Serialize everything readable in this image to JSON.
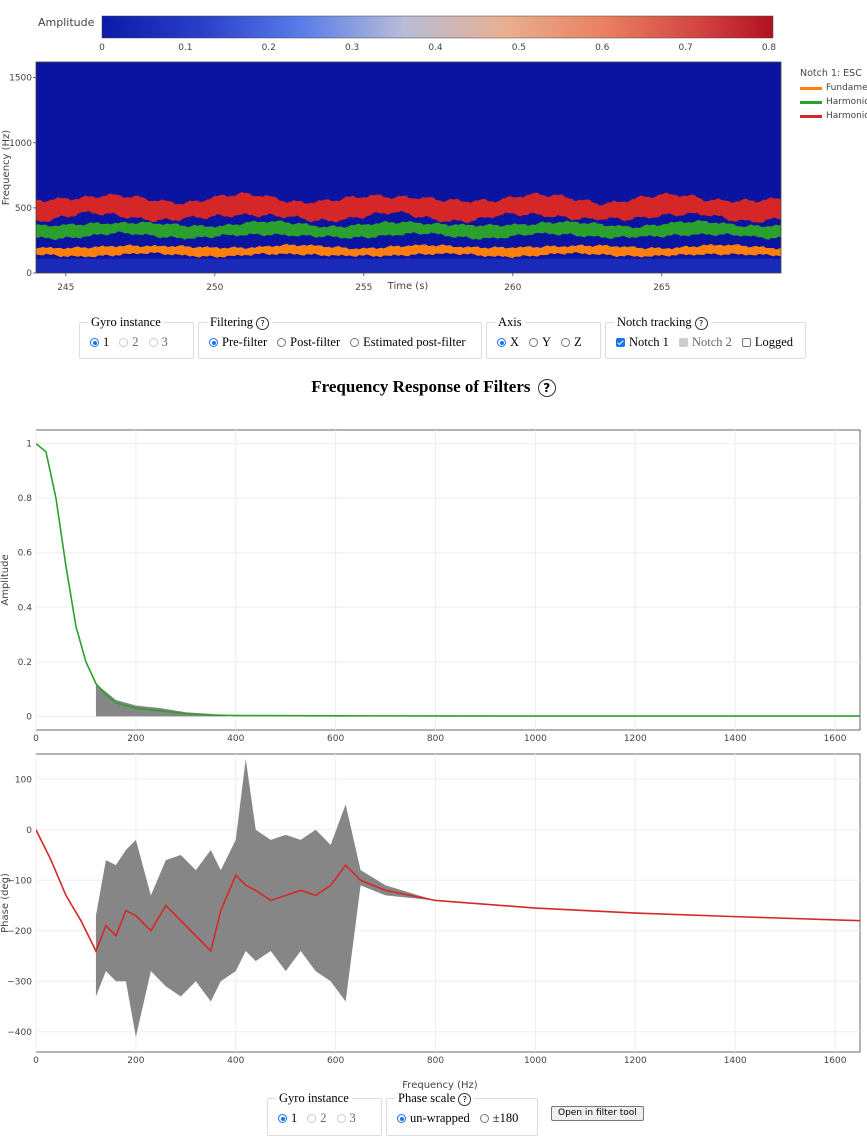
{
  "colorbar": {
    "label": "Amplitude",
    "ticks": [
      "0",
      "0.1",
      "0.2",
      "0.3",
      "0.4",
      "0.5",
      "0.6",
      "0.7",
      "0.8"
    ],
    "colors": [
      "#0a1aa8",
      "#3a5fd0",
      "#6a8ef0",
      "#c8c8d8",
      "#e8a880",
      "#e07050",
      "#c02828",
      "#b01020"
    ]
  },
  "spectrogram": {
    "ylabel": "Frequency (Hz)",
    "xlabel": "Time (s)",
    "yticks": [
      "0",
      "500",
      "1000",
      "1500"
    ],
    "xticks": [
      "245",
      "250",
      "255",
      "260",
      "265"
    ],
    "legend_title": "Notch 1: ESC",
    "legend_items": [
      {
        "name": "Fundame",
        "color": "#ff7f0e"
      },
      {
        "name": "Harmonic",
        "color": "#2ca02c"
      },
      {
        "name": "Harmonic",
        "color": "#d62728"
      }
    ],
    "background_color": "#0a14a0"
  },
  "controls": {
    "gyro": {
      "legend": "Gyro instance",
      "options": [
        "1",
        "2",
        "3"
      ],
      "selected": "1"
    },
    "filtering": {
      "legend": "Filtering",
      "options": [
        "Pre-filter",
        "Post-filter",
        "Estimated post-filter"
      ],
      "selected": "Pre-filter"
    },
    "axis": {
      "legend": "Axis",
      "options": [
        "X",
        "Y",
        "Z"
      ],
      "selected": "X"
    },
    "notch": {
      "legend": "Notch tracking",
      "options": [
        "Notch 1",
        "Notch 2",
        "Logged"
      ],
      "checked": [
        "Notch 1"
      ],
      "disabled": [
        "Notch 2"
      ]
    }
  },
  "section_title": "Frequency Response of Filters",
  "help_glyph": "?",
  "amplitude_plot": {
    "ylabel": "Amplitude",
    "yticks": [
      "0",
      "0.2",
      "0.4",
      "0.6",
      "0.8",
      "1"
    ],
    "xticks": [
      "0",
      "200",
      "400",
      "600",
      "800",
      "1000",
      "1200",
      "1400",
      "1600"
    ]
  },
  "phase_plot": {
    "ylabel": "Phase (deg)",
    "xlabel": "Frequency (Hz)",
    "yticks": [
      "−400",
      "−300",
      "−200",
      "−100",
      "0",
      "100"
    ],
    "xticks": [
      "0",
      "200",
      "400",
      "600",
      "800",
      "1000",
      "1200",
      "1400",
      "1600"
    ]
  },
  "bottom_controls": {
    "gyro": {
      "legend": "Gyro instance",
      "options": [
        "1",
        "2",
        "3"
      ],
      "selected": "1"
    },
    "phase_scale": {
      "legend": "Phase scale",
      "options": [
        "un-wrapped",
        "±180"
      ],
      "selected": "un-wrapped"
    },
    "button_label": "Open in filter tool"
  },
  "chart_data": [
    {
      "type": "heatmap",
      "title": "",
      "xlabel": "Time (s)",
      "ylabel": "Frequency (Hz)",
      "xlim": [
        244,
        269
      ],
      "ylim": [
        0,
        1620
      ],
      "colorbar_range": [
        0,
        0.8
      ],
      "series": [
        {
          "name": "Fundame",
          "color": "#ff7f0e",
          "center_hz": 170,
          "band_hz": 40
        },
        {
          "name": "Harmonic",
          "color": "#2ca02c",
          "center_hz": 330,
          "band_hz": 60
        },
        {
          "name": "Harmonic",
          "color": "#d62728",
          "center_hz": 500,
          "band_hz": 100
        }
      ]
    },
    {
      "type": "line",
      "title": "",
      "xlabel": "",
      "ylabel": "Amplitude",
      "xlim": [
        0,
        1650
      ],
      "ylim": [
        -0.05,
        1.05
      ],
      "x": [
        0,
        20,
        40,
        60,
        80,
        100,
        120,
        140,
        160,
        200,
        250,
        300,
        350,
        400,
        600,
        800,
        1000,
        1200,
        1400,
        1650
      ],
      "series": [
        {
          "name": "",
          "color": "#2ca02c",
          "values": [
            1.0,
            0.97,
            0.8,
            0.55,
            0.33,
            0.2,
            0.12,
            0.08,
            0.05,
            0.03,
            0.02,
            0.01,
            0.005,
            0.003,
            0.002,
            0.0015,
            0.001,
            0.001,
            0.001,
            0.001
          ]
        }
      ],
      "band": {
        "color": "#808080",
        "x": [
          120,
          160,
          200,
          250,
          300,
          380
        ],
        "upper": [
          0.12,
          0.06,
          0.04,
          0.03,
          0.015,
          0.005
        ],
        "lower": [
          0.0,
          0.0,
          0.0,
          0.0,
          0.0,
          0.0
        ]
      }
    },
    {
      "type": "line",
      "title": "",
      "xlabel": "Frequency (Hz)",
      "ylabel": "Phase (deg)",
      "xlim": [
        0,
        1650
      ],
      "ylim": [
        -440,
        150
      ],
      "x": [
        0,
        30,
        60,
        90,
        120,
        140,
        160,
        180,
        200,
        230,
        260,
        290,
        320,
        350,
        370,
        400,
        420,
        440,
        470,
        500,
        530,
        560,
        590,
        620,
        650,
        700,
        800,
        1000,
        1200,
        1400,
        1650
      ],
      "series": [
        {
          "name": "",
          "color": "#d62728",
          "values": [
            0,
            -60,
            -130,
            -180,
            -240,
            -190,
            -210,
            -160,
            -170,
            -200,
            -150,
            -180,
            -210,
            -240,
            -160,
            -90,
            -110,
            -120,
            -140,
            -130,
            -120,
            -130,
            -110,
            -70,
            -100,
            -120,
            -140,
            -155,
            -165,
            -172,
            -180
          ]
        }
      ],
      "band": {
        "color": "#808080",
        "x": [
          120,
          140,
          160,
          180,
          200,
          230,
          260,
          290,
          320,
          350,
          370,
          400,
          420,
          440,
          470,
          500,
          530,
          560,
          590,
          620,
          650,
          700,
          800
        ],
        "upper": [
          -170,
          -60,
          -70,
          -40,
          -20,
          -130,
          -60,
          -50,
          -80,
          -40,
          -80,
          -20,
          140,
          0,
          -20,
          -10,
          -20,
          0,
          -30,
          50,
          -80,
          -110,
          -140
        ],
        "lower": [
          -330,
          -280,
          -300,
          -300,
          -410,
          -280,
          -310,
          -330,
          -300,
          -340,
          -300,
          -280,
          -240,
          -260,
          -240,
          -280,
          -240,
          -280,
          -300,
          -340,
          -110,
          -130,
          -140
        ]
      }
    }
  ]
}
